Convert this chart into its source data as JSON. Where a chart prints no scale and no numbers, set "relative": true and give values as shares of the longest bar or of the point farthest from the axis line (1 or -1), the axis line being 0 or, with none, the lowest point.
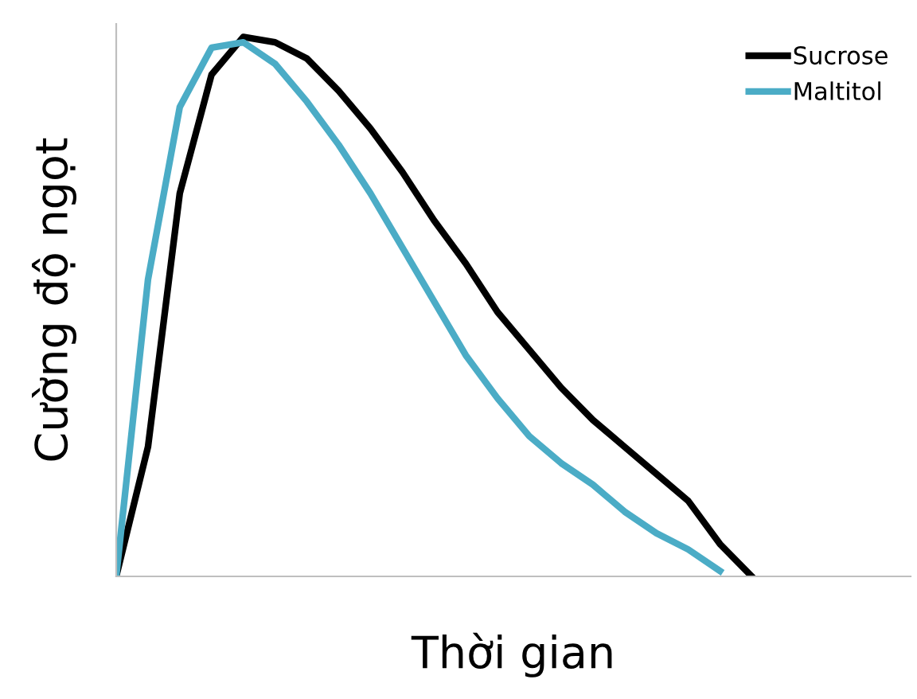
{
  "chart_data": {
    "type": "line",
    "relative": true,
    "xlabel": "Thời gian",
    "ylabel": "Cường độ ngọt",
    "legend": "top right",
    "grid": false,
    "marker": "none",
    "line_style": "solid",
    "categories": [
      null,
      null,
      null,
      null,
      null,
      null,
      null,
      null,
      null,
      null,
      null,
      null,
      null,
      null,
      null,
      null,
      null,
      null,
      null,
      null,
      null,
      null,
      null,
      null,
      null,
      null
    ],
    "series": [
      {
        "name": "Sucrose",
        "color": "#000000",
        "values": [
          0,
          0.24,
          0.71,
          0.93,
          1,
          0.99,
          0.96,
          0.9,
          0.83,
          0.75,
          0.66,
          0.58,
          0.49,
          0.42,
          0.35,
          0.29,
          0.24,
          0.19,
          0.14,
          0.06,
          0,
          null,
          null,
          null,
          null,
          null
        ]
      },
      {
        "name": "Maltitol",
        "color": "#4bacc6",
        "values": [
          0,
          0.55,
          0.87,
          0.98,
          0.99,
          0.95,
          0.88,
          0.8,
          0.71,
          0.61,
          0.51,
          0.41,
          0.33,
          0.26,
          0.21,
          0.17,
          0.12,
          0.08,
          0.05,
          0.01,
          null,
          null,
          null,
          null,
          null,
          null
        ]
      }
    ]
  }
}
